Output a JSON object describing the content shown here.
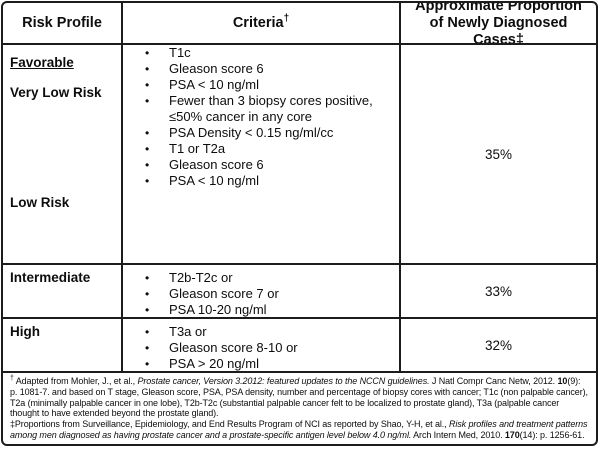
{
  "header": {
    "col1": "Risk Profile",
    "col2": "Criteria",
    "col2_sup": "†",
    "col3": "Approximate Proportion of Newly Diagnosed Cases‡"
  },
  "group": {
    "label": "Favorable",
    "proportion": "35%",
    "sections": [
      {
        "label": "Very Low Risk",
        "criteria": [
          "T1c",
          "Gleason score 6",
          "PSA < 10 ng/ml",
          "Fewer than 3 biopsy cores positive, ≤50% cancer in any core",
          "PSA Density < 0.15 ng/ml/cc"
        ]
      },
      {
        "label": "Low Risk",
        "criteria": [
          "T1 or T2a",
          "Gleason score 6",
          "PSA < 10 ng/ml"
        ]
      }
    ]
  },
  "rows": [
    {
      "label": "Intermediate",
      "criteria": [
        "T2b-T2c or",
        "Gleason score 7 or",
        "PSA 10-20 ng/ml"
      ],
      "proportion": "33%"
    },
    {
      "label": "High",
      "criteria": [
        "T3a or",
        "Gleason score 8-10 or",
        "PSA > 20 ng/ml"
      ],
      "proportion": "32%"
    }
  ],
  "footnotes": [
    {
      "segments": [
        {
          "text": "†",
          "style": "sup"
        },
        {
          "text": " Adapted  from Mohler, J., et al., "
        },
        {
          "text": "Prostate cancer, Version 3.2012: featured updates to the NCCN guidelines.",
          "style": "italic"
        },
        {
          "text": " J Natl Compr Canc Netw, 2012. "
        },
        {
          "text": "10",
          "style": "bold"
        },
        {
          "text": "(9): p. 1081-7.  and based on T stage, Gleason score, PSA, PSA density, number and percentage of biopsy cores with cancer; T1c (non palpable cancer), T2a (minimally palpable cancer in one lobe), T2b-T2c (substantial palpable cancer felt to be localized to prostate gland), T3a (palpable cancer thought to have extended beyond the prostate gland)."
        }
      ]
    },
    {
      "segments": [
        {
          "text": "‡Proportions from Surveillance, Epidemiology, and End Results Program of NCI as reported by Shao, Y-H, et al., "
        },
        {
          "text": "Risk profiles and treatment patterns among men diagnosed as having prostate cancer and a prostate-specific antigen level below 4.0 ng/ml.",
          "style": "italic"
        },
        {
          "text": " Arch Intern Med, 2010. "
        },
        {
          "text": "170",
          "style": "bold"
        },
        {
          "text": "(14): p. 1256-61."
        }
      ]
    }
  ]
}
